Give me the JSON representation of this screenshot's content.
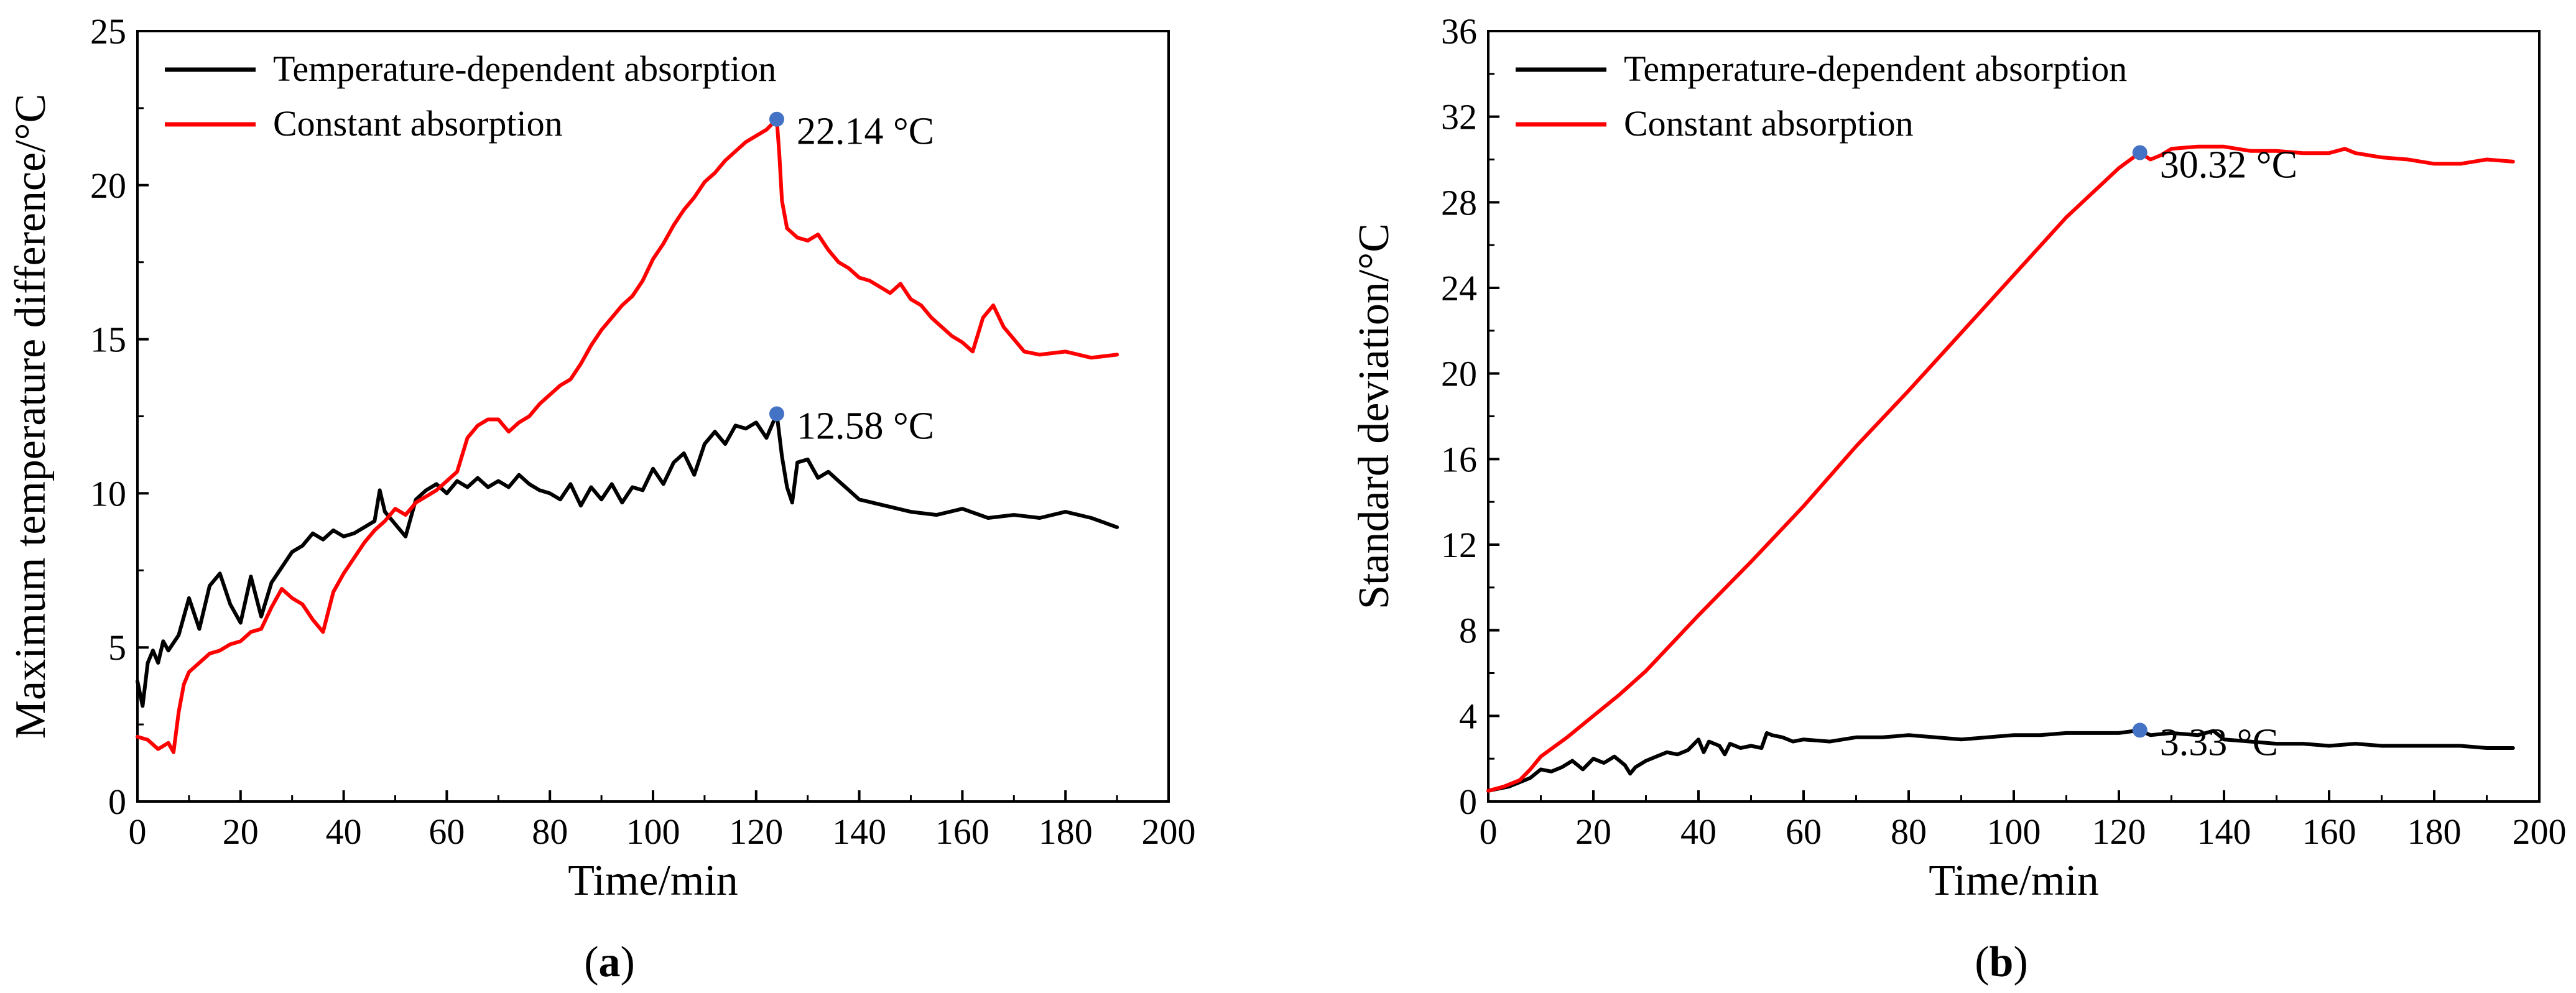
{
  "chart_data": [
    {
      "type": "line",
      "panel": "a",
      "caption_open": "(",
      "caption_letter": "a",
      "caption_close": ")",
      "xlabel": "Time/min",
      "ylabel": "Maximum temperature difference/°C",
      "xlim": [
        0,
        200
      ],
      "ylim": [
        0,
        25
      ],
      "xticks": [
        0,
        20,
        40,
        60,
        80,
        100,
        120,
        140,
        160,
        180,
        200
      ],
      "yticks": [
        0,
        5,
        10,
        15,
        20,
        25
      ],
      "legend_position": "top-left",
      "series": [
        {
          "name": "Temperature-dependent absorption",
          "color": "#000000",
          "x": [
            0,
            1,
            2,
            3,
            4,
            5,
            6,
            8,
            10,
            12,
            14,
            16,
            18,
            20,
            22,
            24,
            26,
            28,
            30,
            32,
            34,
            36,
            38,
            40,
            42,
            44,
            46,
            47,
            48,
            50,
            52,
            54,
            56,
            58,
            60,
            62,
            64,
            66,
            68,
            70,
            72,
            74,
            76,
            78,
            80,
            82,
            84,
            86,
            88,
            90,
            92,
            94,
            96,
            98,
            100,
            102,
            104,
            106,
            108,
            110,
            112,
            114,
            116,
            118,
            120,
            122,
            124,
            125,
            126,
            127,
            128,
            130,
            132,
            134,
            136,
            138,
            140,
            145,
            150,
            155,
            160,
            165,
            170,
            175,
            180,
            185,
            190
          ],
          "y": [
            3.9,
            3.1,
            4.5,
            4.9,
            4.5,
            5.2,
            4.9,
            5.4,
            6.6,
            5.6,
            7.0,
            7.4,
            6.4,
            5.8,
            7.3,
            6.0,
            7.1,
            7.6,
            8.1,
            8.3,
            8.7,
            8.5,
            8.8,
            8.6,
            8.7,
            8.9,
            9.1,
            10.1,
            9.4,
            9.0,
            8.6,
            9.8,
            10.1,
            10.3,
            10.0,
            10.4,
            10.2,
            10.5,
            10.2,
            10.4,
            10.2,
            10.6,
            10.3,
            10.1,
            10.0,
            9.8,
            10.3,
            9.6,
            10.2,
            9.8,
            10.3,
            9.7,
            10.2,
            10.1,
            10.8,
            10.3,
            11.0,
            11.3,
            10.6,
            11.6,
            12.0,
            11.6,
            12.2,
            12.1,
            12.3,
            11.8,
            12.58,
            11.2,
            10.2,
            9.7,
            11.0,
            11.1,
            10.5,
            10.7,
            10.4,
            10.1,
            9.8,
            9.6,
            9.4,
            9.3,
            9.5,
            9.2,
            9.3,
            9.2,
            9.4,
            9.2,
            8.9
          ]
        },
        {
          "name": "Constant absorption",
          "color": "#ff0000",
          "x": [
            0,
            2,
            4,
            6,
            7,
            8,
            9,
            10,
            12,
            14,
            16,
            18,
            20,
            22,
            24,
            26,
            28,
            30,
            32,
            34,
            36,
            38,
            40,
            42,
            44,
            46,
            48,
            50,
            52,
            54,
            56,
            58,
            60,
            62,
            64,
            66,
            68,
            70,
            72,
            74,
            76,
            78,
            80,
            82,
            84,
            86,
            88,
            90,
            92,
            94,
            96,
            98,
            100,
            102,
            104,
            106,
            108,
            110,
            112,
            114,
            116,
            118,
            120,
            122,
            124,
            124.5,
            125,
            126,
            128,
            130,
            132,
            134,
            136,
            138,
            140,
            142,
            144,
            146,
            148,
            150,
            152,
            154,
            156,
            158,
            160,
            162,
            164,
            166,
            168,
            170,
            172,
            175,
            180,
            185,
            190
          ],
          "y": [
            2.1,
            2.0,
            1.7,
            1.9,
            1.6,
            2.9,
            3.8,
            4.2,
            4.5,
            4.8,
            4.9,
            5.1,
            5.2,
            5.5,
            5.6,
            6.3,
            6.9,
            6.6,
            6.4,
            5.9,
            5.5,
            6.8,
            7.4,
            7.9,
            8.4,
            8.8,
            9.1,
            9.5,
            9.3,
            9.7,
            9.9,
            10.1,
            10.4,
            10.7,
            11.8,
            12.2,
            12.4,
            12.4,
            12.0,
            12.3,
            12.5,
            12.9,
            13.2,
            13.5,
            13.7,
            14.2,
            14.8,
            15.3,
            15.7,
            16.1,
            16.4,
            16.9,
            17.6,
            18.1,
            18.7,
            19.2,
            19.6,
            20.1,
            20.4,
            20.8,
            21.1,
            21.4,
            21.6,
            21.8,
            22.14,
            21.0,
            19.5,
            18.6,
            18.3,
            18.2,
            18.4,
            17.9,
            17.5,
            17.3,
            17.0,
            16.9,
            16.7,
            16.5,
            16.8,
            16.3,
            16.1,
            15.7,
            15.4,
            15.1,
            14.9,
            14.6,
            15.7,
            16.1,
            15.4,
            15.0,
            14.6,
            14.5,
            14.6,
            14.4,
            14.5
          ]
        }
      ],
      "annotations": [
        {
          "x": 124,
          "y": 22.14,
          "text": "22.14 °C"
        },
        {
          "x": 124,
          "y": 12.58,
          "text": "12.58 °C"
        }
      ]
    },
    {
      "type": "line",
      "panel": "b",
      "caption_open": "(",
      "caption_letter": "b",
      "caption_close": ")",
      "xlabel": "Time/min",
      "ylabel": "Standard deviation/°C",
      "xlim": [
        0,
        200
      ],
      "ylim": [
        0,
        36
      ],
      "xticks": [
        0,
        20,
        40,
        60,
        80,
        100,
        120,
        140,
        160,
        180,
        200
      ],
      "yticks": [
        0,
        4,
        8,
        12,
        16,
        20,
        24,
        28,
        32,
        36
      ],
      "legend_position": "top-left",
      "series": [
        {
          "name": "Temperature-dependent absorption",
          "color": "#000000",
          "x": [
            0,
            2,
            4,
            6,
            8,
            10,
            12,
            14,
            16,
            18,
            20,
            22,
            24,
            26,
            27,
            28,
            30,
            32,
            34,
            36,
            38,
            40,
            41,
            42,
            44,
            45,
            46,
            48,
            50,
            52,
            53,
            54,
            56,
            58,
            60,
            65,
            70,
            75,
            80,
            85,
            90,
            95,
            100,
            105,
            110,
            115,
            120,
            124,
            126,
            130,
            135,
            138,
            140,
            145,
            150,
            155,
            160,
            165,
            170,
            175,
            180,
            185,
            190,
            195
          ],
          "y": [
            0.5,
            0.6,
            0.7,
            0.9,
            1.1,
            1.5,
            1.4,
            1.6,
            1.9,
            1.5,
            2.0,
            1.8,
            2.1,
            1.7,
            1.3,
            1.6,
            1.9,
            2.1,
            2.3,
            2.2,
            2.4,
            2.9,
            2.3,
            2.8,
            2.6,
            2.2,
            2.7,
            2.5,
            2.6,
            2.5,
            3.2,
            3.1,
            3.0,
            2.8,
            2.9,
            2.8,
            3.0,
            3.0,
            3.1,
            3.0,
            2.9,
            3.0,
            3.1,
            3.1,
            3.2,
            3.2,
            3.2,
            3.33,
            3.1,
            3.2,
            3.1,
            3.3,
            2.9,
            2.8,
            2.7,
            2.7,
            2.6,
            2.7,
            2.6,
            2.6,
            2.6,
            2.6,
            2.5,
            2.5
          ]
        },
        {
          "name": "Constant absorption",
          "color": "#ff0000",
          "x": [
            0,
            3,
            6,
            8,
            10,
            15,
            20,
            25,
            30,
            40,
            50,
            60,
            70,
            80,
            90,
            100,
            110,
            120,
            124,
            126,
            128,
            130,
            135,
            140,
            145,
            150,
            155,
            160,
            163,
            165,
            170,
            175,
            180,
            185,
            190,
            195
          ],
          "y": [
            0.5,
            0.7,
            1.0,
            1.5,
            2.1,
            3.0,
            4.0,
            5.0,
            6.1,
            8.7,
            11.2,
            13.8,
            16.6,
            19.2,
            21.9,
            24.6,
            27.3,
            29.6,
            30.32,
            30.0,
            30.2,
            30.5,
            30.6,
            30.6,
            30.4,
            30.4,
            30.3,
            30.3,
            30.5,
            30.3,
            30.1,
            30.0,
            29.8,
            29.8,
            30.0,
            29.9
          ]
        }
      ],
      "annotations": [
        {
          "x": 124,
          "y": 30.32,
          "text": "30.32 °C"
        },
        {
          "x": 124,
          "y": 3.33,
          "text": "3.33 °C"
        }
      ]
    }
  ]
}
